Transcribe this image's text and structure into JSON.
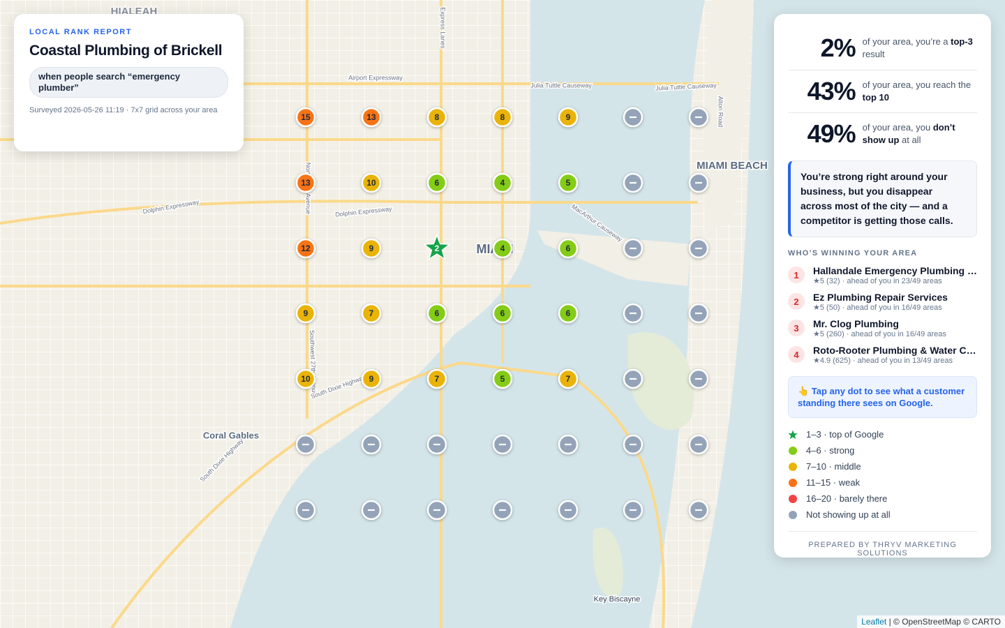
{
  "header": {
    "eyebrow": "LOCAL RANK REPORT",
    "title": "Coastal Plumbing of Brickell",
    "query": "when people search “emergency plumber”",
    "survey": "Surveyed 2026-05-26 11:19 · 7x7 grid across your area"
  },
  "map_labels": [
    "HIALEAH",
    "MIAMI BEACH",
    "Coral Gables",
    "Key Biscayne",
    "MIAMI",
    "Airport Expressway",
    "Julia Tuttle Causeway",
    "Julia Tuttle Causeway",
    "Dolphin Expressway",
    "Dolphin Expressway",
    "MacArthur Causeway",
    "Express Lanes",
    "Alton Road",
    "North 27th Avenue",
    "Southwest 27th Avenue",
    "South Dixie Highway",
    "South Dixie Highway"
  ],
  "grid": {
    "rows": [
      [
        15,
        13,
        8,
        8,
        9,
        null,
        null
      ],
      [
        13,
        10,
        6,
        4,
        5,
        null,
        null
      ],
      [
        12,
        9,
        2,
        4,
        6,
        null,
        null
      ],
      [
        9,
        7,
        6,
        6,
        6,
        null,
        null
      ],
      [
        10,
        9,
        7,
        5,
        7,
        null,
        null
      ],
      [
        null,
        null,
        null,
        null,
        null,
        null,
        null
      ],
      [
        null,
        null,
        null,
        null,
        null,
        null,
        null
      ]
    ]
  },
  "stats": [
    {
      "value": "2%",
      "before": "of your area, you’re a ",
      "bold": "top-3",
      "after": " result"
    },
    {
      "value": "43%",
      "before": "of your area, you reach the ",
      "bold": "top 10",
      "after": ""
    },
    {
      "value": "49%",
      "before": "of your area, you ",
      "bold": "don’t show up",
      "after": " at all"
    }
  ],
  "insight": "You’re strong right around your business, but you disappear across most of the city — and a competitor is getting those calls.",
  "competitors": {
    "heading": "WHO’S WINNING YOUR AREA",
    "items": [
      {
        "rank": "1",
        "name": "Hallandale Emergency Plumbing …",
        "detail": "★5 (32) · ahead of you in 23/49 areas"
      },
      {
        "rank": "2",
        "name": "Ez Plumbing Repair Services",
        "detail": "★5 (50) · ahead of you in 16/49 areas"
      },
      {
        "rank": "3",
        "name": "Mr. Clog Plumbing",
        "detail": "★5 (260) · ahead of you in 16/49 areas"
      },
      {
        "rank": "4",
        "name": "Roto-Rooter Plumbing & Water C…",
        "detail": "★4.9 (625) · ahead of you in 13/49 areas"
      }
    ]
  },
  "tip": "👆 Tap any dot to see what a customer standing there sees on Google.",
  "legend": {
    "items": [
      {
        "label": "1–3 · top of Google",
        "color": "#16a34a",
        "shape": "star",
        "max": 3
      },
      {
        "label": "4–6 · strong",
        "color": "#84cc16",
        "max": 6
      },
      {
        "label": "7–10 · middle",
        "color": "#eab308",
        "max": 10
      },
      {
        "label": "11–15 · weak",
        "color": "#f97316",
        "max": 15
      },
      {
        "label": "16–20 · barely there",
        "color": "#ef4444",
        "max": 20
      },
      {
        "label": "Not showing up at all",
        "color": "#94a3b8"
      }
    ]
  },
  "footer": "PREPARED BY THRYV MARKETING SOLUTIONS",
  "attribution": {
    "link": "Leaflet",
    "text": "| © OpenStreetMap © CARTO"
  }
}
